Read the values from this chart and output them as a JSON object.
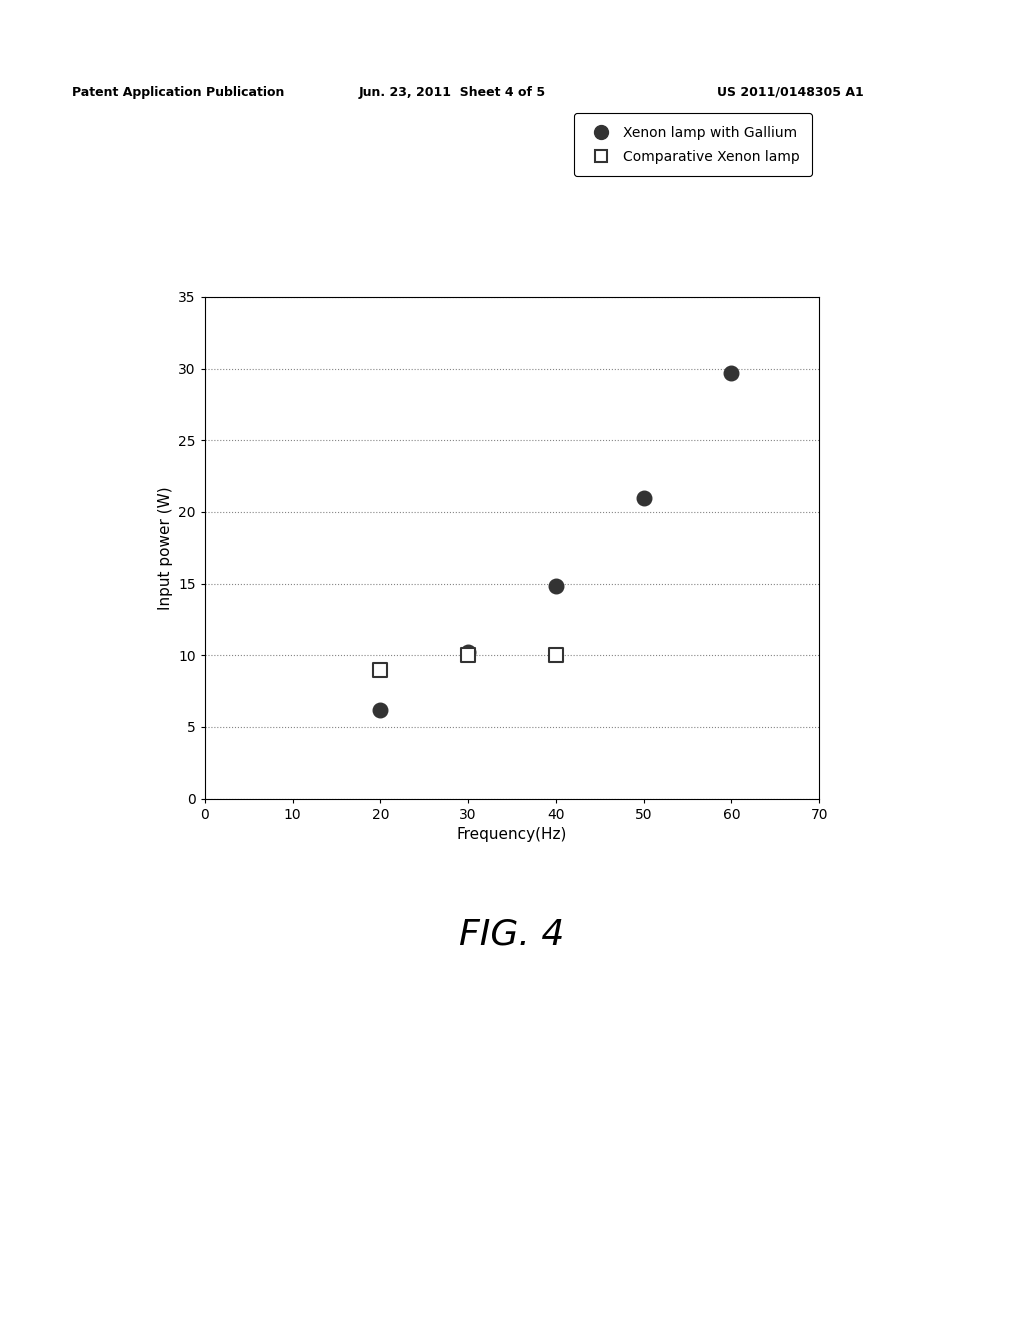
{
  "title": "FIG. 4",
  "header_left": "Patent Application Publication",
  "header_center": "Jun. 23, 2011  Sheet 4 of 5",
  "header_right": "US 2011/0148305 A1",
  "xlabel": "Frequency(Hz)",
  "ylabel": "Input power (W)",
  "xlim": [
    0,
    70
  ],
  "ylim": [
    0,
    35
  ],
  "xticks": [
    0,
    10,
    20,
    30,
    40,
    50,
    60,
    70
  ],
  "yticks": [
    0,
    5,
    10,
    15,
    20,
    25,
    30,
    35
  ],
  "series1_label": "Xenon lamp with Gallium",
  "series2_label": "Comparative Xenon lamp",
  "series1_x": [
    20,
    30,
    40,
    50,
    60
  ],
  "series1_y": [
    6.2,
    10.2,
    14.8,
    21.0,
    29.7
  ],
  "series2_x": [
    20,
    30,
    40
  ],
  "series2_y": [
    9.0,
    10.0,
    10.0
  ],
  "background_color": "#ffffff",
  "grid_color": "#777777",
  "marker_color_s1": "#333333",
  "marker_color_s2": "#ffffff",
  "marker_edge_s2": "#333333",
  "header_fontsize": 9,
  "axis_label_fontsize": 11,
  "tick_fontsize": 10,
  "legend_fontsize": 10,
  "fig_caption_fontsize": 26
}
